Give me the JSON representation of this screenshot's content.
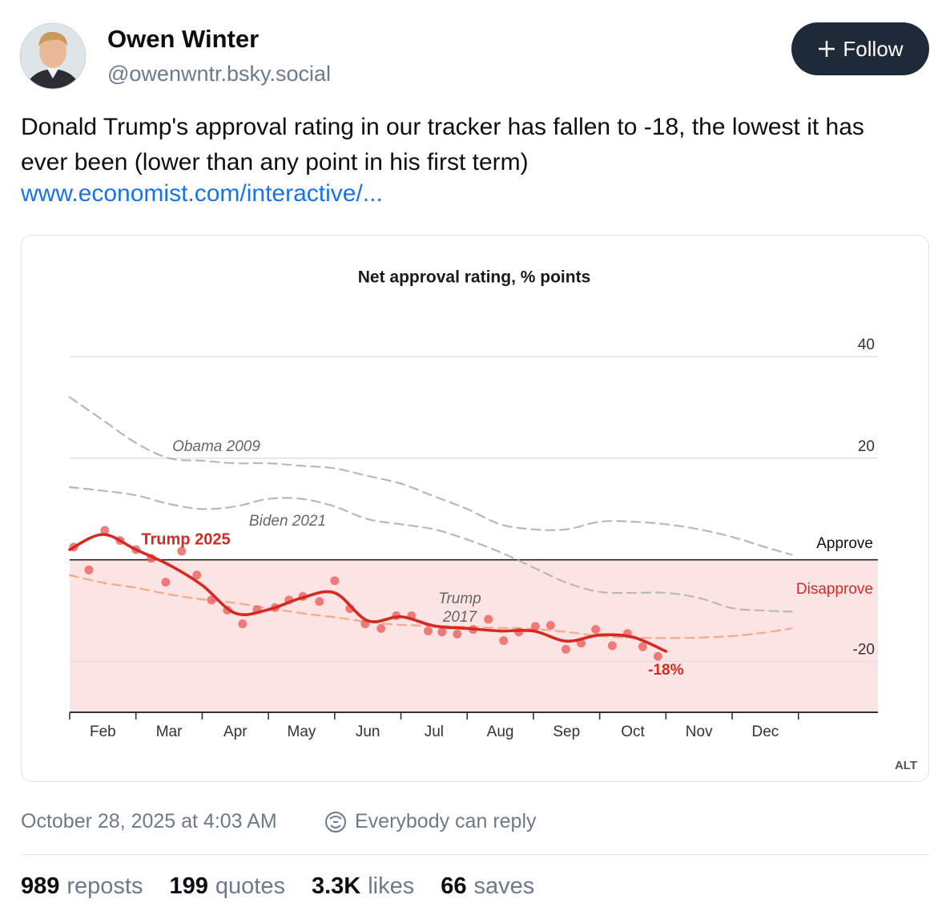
{
  "post": {
    "author": "Owen Winter",
    "handle": "@owenwntr.bsky.social",
    "follow": "Follow",
    "text": "Donald Trump's approval rating in our tracker has fallen to -18, the lowest it has ever been (lower than any point in his first term)",
    "link": "www.economist.com/interactive/...",
    "alt": "ALT",
    "timestamp": "October 28, 2025 at 4:03 AM",
    "reply_setting": "Everybody can reply"
  },
  "stats": [
    {
      "count": "989",
      "label": "reposts"
    },
    {
      "count": "199",
      "label": "quotes"
    },
    {
      "count": "3.3K",
      "label": "likes"
    },
    {
      "count": "66",
      "label": "saves"
    }
  ],
  "chart_data": {
    "type": "line",
    "title": "Net approval rating, % points",
    "categories": [
      "Feb",
      "Mar",
      "Apr",
      "May",
      "Jun",
      "Jul",
      "Aug",
      "Sep",
      "Oct",
      "Nov",
      "Dec"
    ],
    "xlim": [
      0,
      12.2
    ],
    "xticks": [
      0,
      1,
      2,
      3,
      4,
      5,
      6,
      7,
      8,
      9,
      10,
      11
    ],
    "ylim": [
      -30,
      40
    ],
    "yticks": [
      -20,
      20,
      40
    ],
    "grid": true,
    "annotations": [
      "Approve",
      "Disapprove"
    ],
    "x": [
      0,
      0.5,
      1,
      1.5,
      2,
      2.5,
      3,
      3.5,
      4,
      4.5,
      5,
      5.5,
      6,
      6.5,
      7,
      7.5,
      8,
      8.5,
      9,
      9.5,
      10,
      10.5,
      10.9
    ],
    "series": [
      {
        "name": "Obama 2009",
        "color": "#b8b8b8",
        "dashed": true,
        "values": [
          32,
          27.5,
          23,
          20,
          19.5,
          19,
          19,
          18.5,
          18,
          16.5,
          15,
          12.5,
          10,
          7,
          6,
          6,
          7.5,
          7.5,
          7,
          6,
          4.5,
          2.5,
          1
        ]
      },
      {
        "name": "Biden 2021",
        "color": "#b8b8b8",
        "dashed": true,
        "values": [
          14.3,
          13.6,
          12.7,
          11,
          10,
          10.5,
          12,
          12,
          10.5,
          8,
          7,
          6,
          4,
          1.5,
          -1.5,
          -4.5,
          -6.3,
          -6.5,
          -6.5,
          -7.5,
          -9.5,
          -10,
          -10.2
        ]
      },
      {
        "name": "Trump 2017",
        "color": "#f4a98a",
        "dashed": true,
        "values": [
          -3,
          -4.5,
          -5.5,
          -6.8,
          -7.8,
          -8.5,
          -9.5,
          -10.5,
          -11.3,
          -12.2,
          -12.8,
          -13,
          -13.2,
          -13.4,
          -13.6,
          -14.2,
          -15,
          -15.3,
          -15.4,
          -15.3,
          -15,
          -14.3,
          -13.5
        ]
      },
      {
        "name": "Trump 2025",
        "color": "#d42a22",
        "dashed": false,
        "values": [
          2,
          5,
          2,
          -1,
          -5,
          -10.5,
          -9.8,
          -7.5,
          -6.5,
          -12,
          -11.2,
          -13,
          -13.5,
          -14,
          -14,
          -16,
          -14.8,
          -15.2,
          -18,
          null,
          null,
          null,
          null
        ],
        "value_labels": [
          null,
          null,
          null,
          null,
          null,
          null,
          null,
          null,
          null,
          null,
          null,
          null,
          null,
          null,
          null,
          null,
          null,
          null,
          "-18%",
          null,
          null,
          null,
          null
        ]
      }
    ],
    "points": {
      "color": "#ec5f5f",
      "x": [
        0.06,
        0.29,
        0.53,
        0.76,
        1.0,
        1.23,
        1.45,
        1.69,
        1.92,
        2.14,
        2.38,
        2.61,
        2.83,
        3.1,
        3.31,
        3.52,
        3.77,
        4.0,
        4.23,
        4.46,
        4.7,
        4.93,
        5.16,
        5.41,
        5.62,
        5.85,
        6.09,
        6.32,
        6.55,
        6.78,
        7.03,
        7.26,
        7.49,
        7.72,
        7.94,
        8.19,
        8.42,
        8.65,
        8.88
      ],
      "values": [
        2.5,
        -2,
        5.8,
        3.8,
        2,
        0.3,
        -4.4,
        1.7,
        -3,
        -7.9,
        -9.9,
        -12.6,
        -9.8,
        -9.4,
        -7.9,
        -7.2,
        -8.2,
        -4.1,
        -9.6,
        -12.6,
        -13.5,
        -11,
        -11,
        -14,
        -14.2,
        -14.6,
        -13.7,
        -11.7,
        -15.9,
        -14.2,
        -13.1,
        -12.9,
        -17.6,
        -16.4,
        -13.7,
        -16.9,
        -14.5,
        -17.1,
        -19
      ]
    }
  }
}
